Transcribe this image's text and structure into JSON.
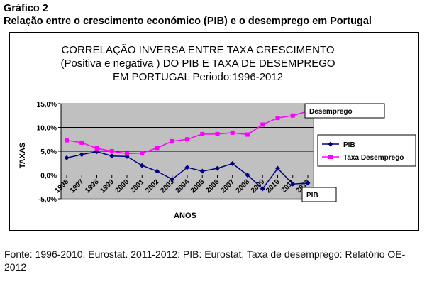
{
  "heading": {
    "label": "Gráfico 2",
    "caption": "Relação entre o crescimento económico (PIB) e o desemprego em Portugal"
  },
  "source_note": "Fonte: 1996-2010: Eurostat. 2011-2012: PIB: Eurostat; Taxa de desemprego: Relatório OE-2012",
  "chart_data": {
    "type": "line",
    "title_lines": [
      "CORRELAÇÃO INVERSA ENTRE TAXA CRESCIMENTO",
      "(Positiva e negativa ) DO PIB E TAXA DE DESEMPREGO",
      "EM PORTUGAL  Periodo:1996-2012"
    ],
    "xlabel": "ANOS",
    "ylabel": "TAXAS",
    "categories": [
      "1996",
      "1997",
      "1998",
      "1999",
      "2000",
      "2001",
      "2002",
      "2003",
      "2004",
      "2005",
      "2006",
      "2007",
      "2008",
      "2009",
      "2010",
      "2011",
      "2012"
    ],
    "ylim": [
      -5,
      15
    ],
    "yticks": [
      -5,
      0,
      5,
      10,
      15
    ],
    "ytick_labels": [
      "-5,0%",
      "0,0%",
      "5,0%",
      "10,0%",
      "15,0%"
    ],
    "grid": true,
    "plot_background": "#c0c0c0",
    "legend_position": "right",
    "series": [
      {
        "name": "PIB",
        "color": "#000080",
        "marker": "diamond",
        "values": [
          3.6,
          4.3,
          4.9,
          4.0,
          3.9,
          2.0,
          0.8,
          -0.9,
          1.6,
          0.8,
          1.4,
          2.4,
          0.0,
          -2.9,
          1.4,
          -1.9,
          -1.7
        ]
      },
      {
        "name": "Taxa Desemprego",
        "color": "#ff00ff",
        "marker": "square",
        "values": [
          7.3,
          6.8,
          5.6,
          5.0,
          4.5,
          4.6,
          5.7,
          7.1,
          7.5,
          8.6,
          8.6,
          8.9,
          8.5,
          10.6,
          12.0,
          12.5,
          13.4
        ]
      }
    ],
    "annotations": [
      {
        "text": "Desemprego",
        "series": "Taxa Desemprego"
      },
      {
        "text": "PIB",
        "series": "PIB"
      }
    ]
  }
}
